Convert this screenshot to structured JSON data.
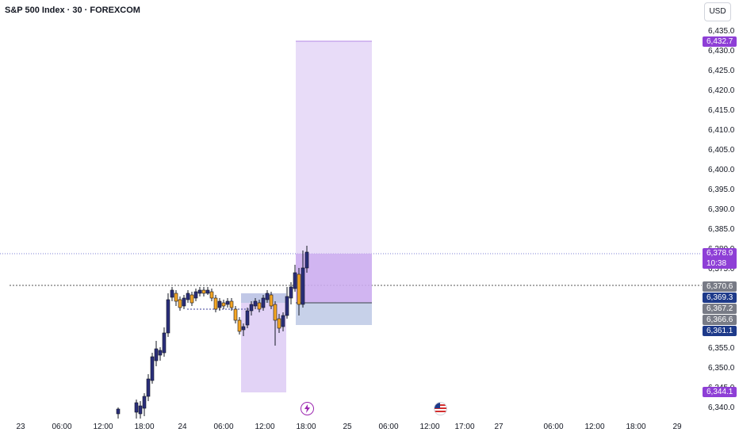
{
  "header": {
    "symbol_title": "S&P 500 Index · 30 · FOREXCOM",
    "currency": "USD"
  },
  "price_axis": {
    "ticks": [
      "6,435.0",
      "6,430.0",
      "6,425.0",
      "6,420.0",
      "6,415.0",
      "6,410.0",
      "6,405.0",
      "6,400.0",
      "6,395.0",
      "6,390.0",
      "6,385.0",
      "6,380.0",
      "6,375.0",
      "6,355.0",
      "6,350.0",
      "6,345.0",
      "6,340.0"
    ]
  },
  "price_tags": {
    "target": "6,432.7",
    "current_price": "6,378.9",
    "countdown": "10:38",
    "entry_level": "6,370.6",
    "blue_level": "6,369.3",
    "gray_level_1": "6,367.2",
    "gray_level_2": "6,366.6",
    "stop_level": "6,361.1",
    "low_level": "6,344.1"
  },
  "time_axis": {
    "ticks": [
      {
        "label": "23",
        "bold": true
      },
      {
        "label": "06:00",
        "bold": false
      },
      {
        "label": "12:00",
        "bold": false
      },
      {
        "label": "18:00",
        "bold": false
      },
      {
        "label": "24",
        "bold": true
      },
      {
        "label": "06:00",
        "bold": false
      },
      {
        "label": "12:00",
        "bold": false
      },
      {
        "label": "18:00",
        "bold": false
      },
      {
        "label": "25",
        "bold": true
      },
      {
        "label": "06:00",
        "bold": false
      },
      {
        "label": "12:00",
        "bold": false
      },
      {
        "label": "17:00",
        "bold": false
      },
      {
        "label": "27",
        "bold": true
      },
      {
        "label": "06:00",
        "bold": false
      },
      {
        "label": "12:00",
        "bold": false
      },
      {
        "label": "18:00",
        "bold": false
      },
      {
        "label": "29",
        "bold": true
      }
    ]
  },
  "colors": {
    "up_candle": "#2a2e7a",
    "down_candle": "#f5a623",
    "profit_zone": "#d8c4f3",
    "loss_zone": "#b9c6e3",
    "purple_tag": "#8e3fd6",
    "blue_tag": "#1e3a8a",
    "gray_tag": "#787b86"
  },
  "icons": {
    "event_1": "lightning-icon",
    "event_2": "us-flag-icon"
  }
}
